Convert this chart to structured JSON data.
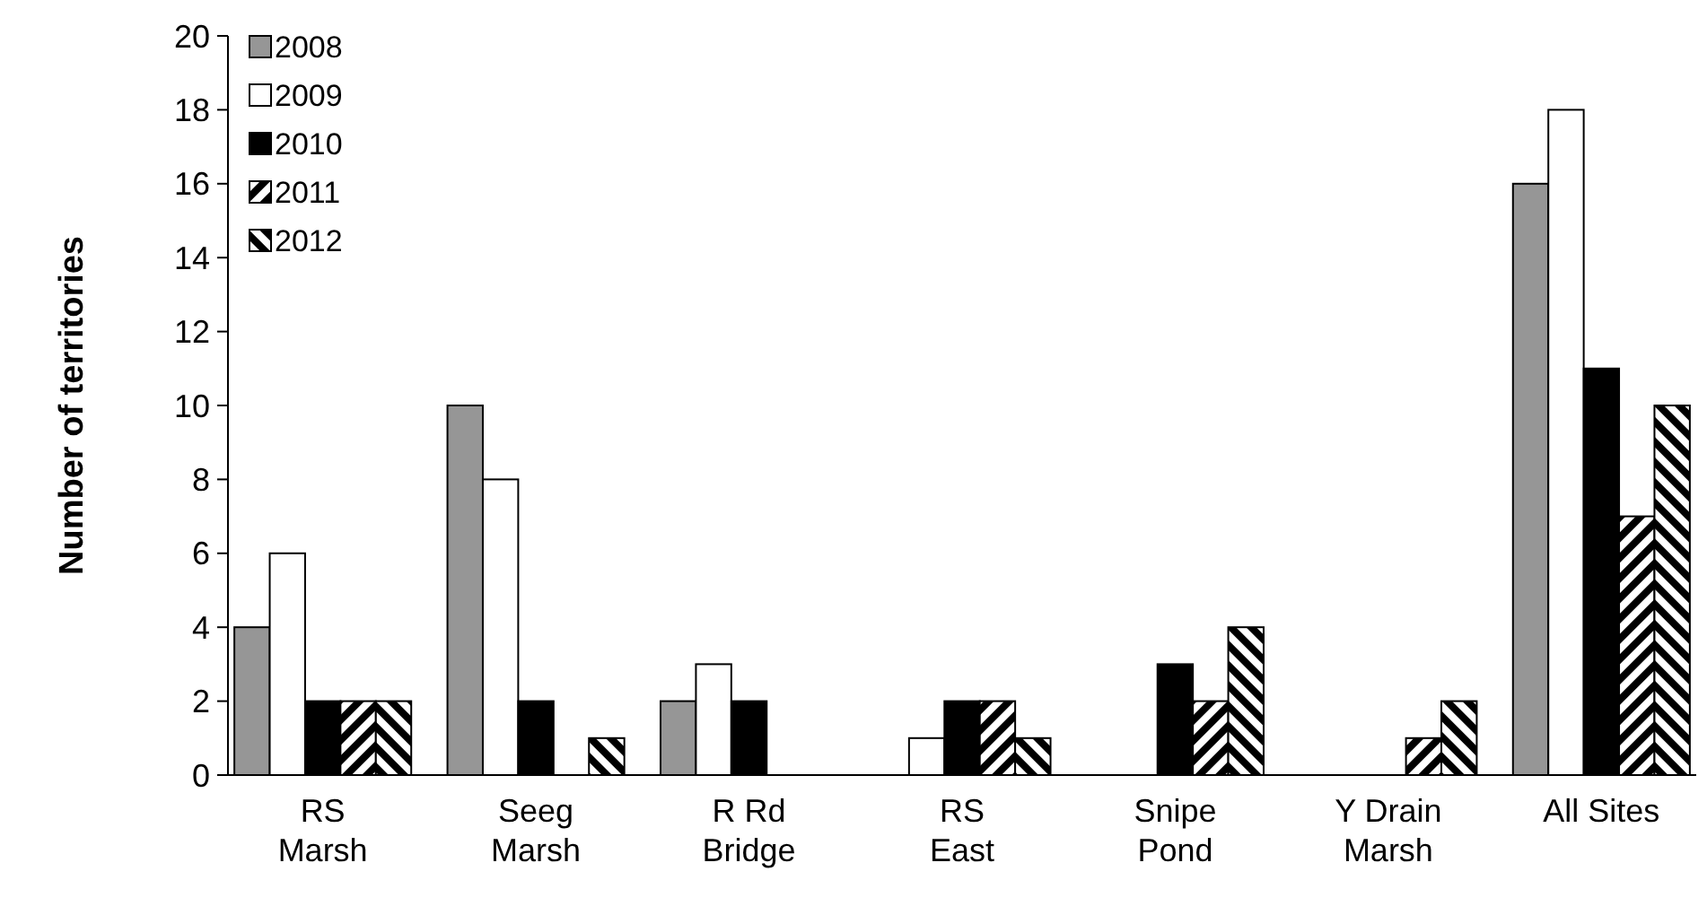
{
  "chart_data": {
    "type": "bar",
    "ylabel": "Number of territories",
    "categories": [
      "RS\nMarsh",
      "Seeg\nMarsh",
      "R Rd\nBridge",
      "RS\nEast",
      "Snipe\nPond",
      "Y Drain\nMarsh",
      "All Sites"
    ],
    "series": [
      {
        "name": "2008",
        "color": "#969696",
        "values": [
          4,
          10,
          2,
          0,
          0,
          0,
          16
        ]
      },
      {
        "name": "2009",
        "color": "#ffffff",
        "values": [
          6,
          8,
          3,
          1,
          0,
          0,
          18
        ]
      },
      {
        "name": "2010",
        "color": "#000000",
        "values": [
          2,
          2,
          2,
          2,
          3,
          0,
          11
        ]
      },
      {
        "name": "2011",
        "color": "#000000",
        "values": [
          2,
          0,
          0,
          2,
          2,
          1,
          7
        ]
      },
      {
        "name": "2012",
        "color": "#000000",
        "values": [
          2,
          1,
          0,
          1,
          4,
          2,
          10
        ]
      }
    ],
    "ylim": [
      0,
      20
    ],
    "yticks": [
      0,
      2,
      4,
      6,
      8,
      10,
      12,
      14,
      16,
      18,
      20
    ],
    "grid": false,
    "legend": "top left"
  }
}
